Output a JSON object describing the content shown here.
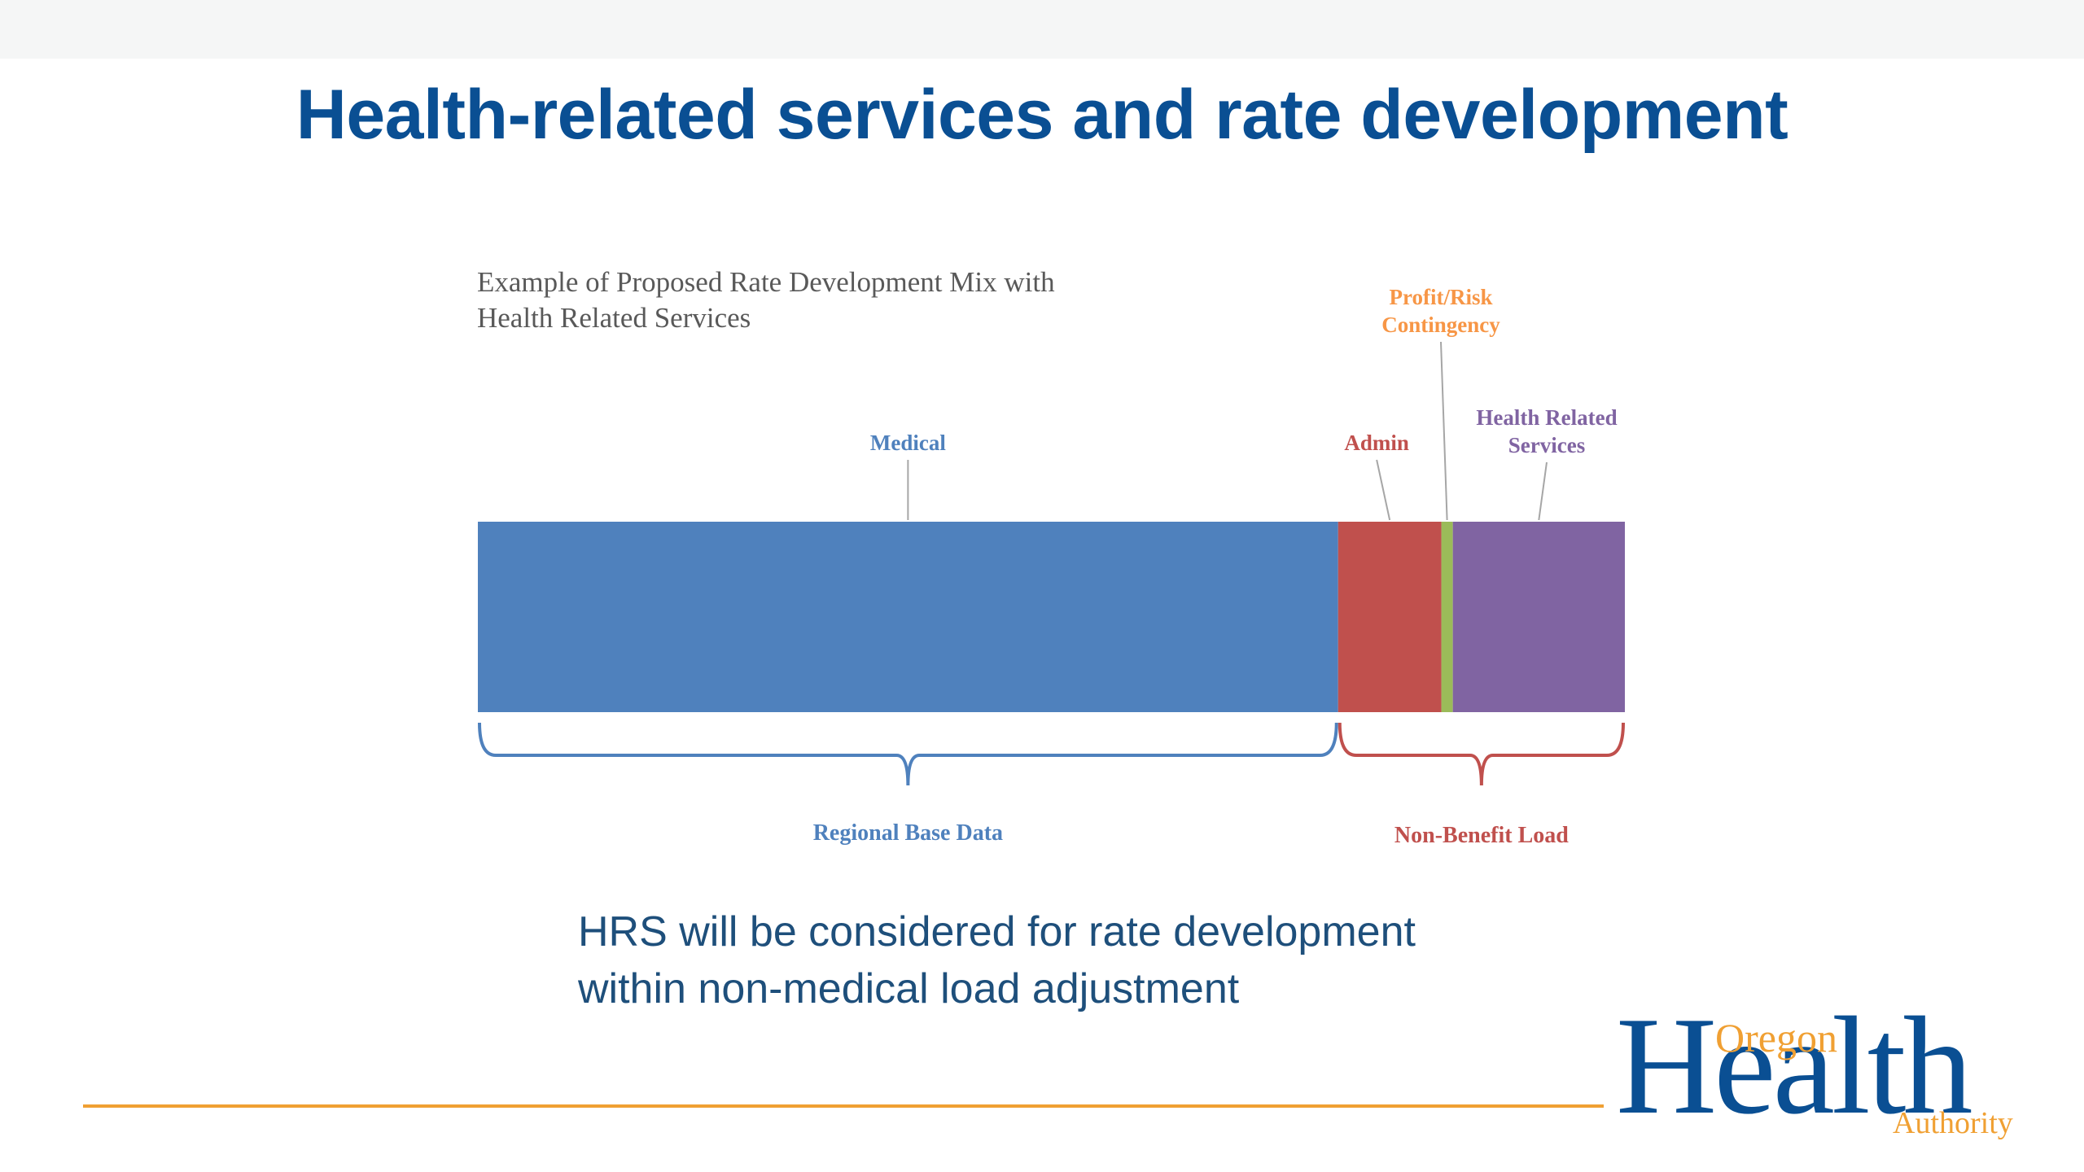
{
  "slide": {
    "title": "Health-related services and rate development",
    "body_lines": [
      "HRS will be considered for rate development",
      "within non-medical load adjustment"
    ]
  },
  "logo": {
    "oregon": "Oregon",
    "health": "Health",
    "authority": "Authority"
  },
  "colors": {
    "title": "#0a4f93",
    "accent_rule": "#f0a033",
    "medical": "#4f81bd",
    "admin": "#c0504d",
    "profit": "#9bbb59",
    "hrs": "#8064a2",
    "profit_label": "#f79646"
  },
  "chart_data": {
    "type": "bar",
    "orientation": "horizontal-stacked",
    "title_lines": [
      "Example of Proposed Rate Development Mix with",
      "Health Related Services"
    ],
    "segments": [
      {
        "name": "Medical",
        "label_lines": [
          "Medical"
        ],
        "value": 75,
        "color": "#4f81bd",
        "label_color": "#4f81bd"
      },
      {
        "name": "Admin",
        "label_lines": [
          "Admin"
        ],
        "value": 9,
        "color": "#c0504d",
        "label_color": "#c0504d"
      },
      {
        "name": "Profit/Risk Contingency",
        "label_lines": [
          "Profit/Risk",
          "Contingency"
        ],
        "value": 1,
        "color": "#9bbb59",
        "label_color": "#f79646"
      },
      {
        "name": "Health Related Services",
        "label_lines": [
          "Health Related",
          "Services"
        ],
        "value": 15,
        "color": "#8064a2",
        "label_color": "#8064a2"
      }
    ],
    "groups": [
      {
        "label": "Regional Base Data",
        "from": 0,
        "to": 0,
        "color": "#4f81bd"
      },
      {
        "label": "Non-Benefit Load",
        "from": 1,
        "to": 3,
        "color": "#c0504d"
      }
    ]
  }
}
